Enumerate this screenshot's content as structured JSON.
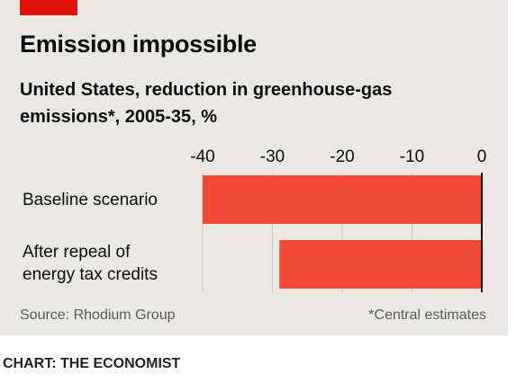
{
  "colors": {
    "brand": "#e3120b",
    "bar": "#f04a35",
    "panel": "#e9e8e4",
    "grid": "#c9c8c4",
    "zero_line": "#0c0c0c"
  },
  "chart_data": {
    "type": "bar",
    "orientation": "horizontal",
    "title": "Emission impossible",
    "subtitle": "United States, reduction in greenhouse-gas emissions*, 2005-35, %",
    "categories": [
      "Baseline scenario",
      "After repeal of energy tax credits"
    ],
    "category_lines": [
      [
        "Baseline scenario"
      ],
      [
        "After repeal of",
        "energy tax credits"
      ]
    ],
    "values": [
      -40,
      -29
    ],
    "xlim": [
      -40,
      0
    ],
    "xticks": [
      -40,
      -30,
      -20,
      -10,
      0
    ],
    "xtick_labels": [
      "-40",
      "-30",
      "-20",
      "-10",
      "0"
    ],
    "axis_position": "top",
    "grid": true,
    "source": "Source: Rhodium Group",
    "footnote": "*Central estimates"
  },
  "credit": "CHART: THE ECONOMIST"
}
